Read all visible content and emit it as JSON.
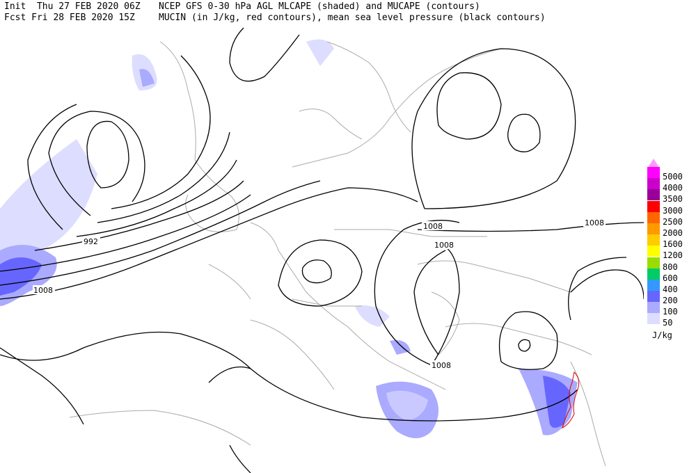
{
  "header": {
    "line1_left": "Init  Thu 27 FEB 2020 06Z",
    "line2_left": "Fcst Fri 28 FEB 2020 15Z",
    "line1_right": "NCEP GFS 0-30 hPa AGL MLCAPE (shaded) and MUCAPE (contours)",
    "line2_right": "MUCIN (in J/kg, red contours), mean sea level pressure (black contours)"
  },
  "map": {
    "isobar_labels": [
      "992",
      "1008",
      "1008",
      "1008",
      "1008",
      "1008"
    ]
  },
  "legend": {
    "unit": "J/kg",
    "items": [
      {
        "label": "5000",
        "color": "#ff00ff"
      },
      {
        "label": "4000",
        "color": "#cc00cc"
      },
      {
        "label": "3500",
        "color": "#990099"
      },
      {
        "label": "3000",
        "color": "#ff0000"
      },
      {
        "label": "2500",
        "color": "#ff6600"
      },
      {
        "label": "2000",
        "color": "#ff9900"
      },
      {
        "label": "1600",
        "color": "#ffcc00"
      },
      {
        "label": "1200",
        "color": "#ffff00"
      },
      {
        "label": "800",
        "color": "#99dd00"
      },
      {
        "label": "600",
        "color": "#00cc66"
      },
      {
        "label": "400",
        "color": "#3399ff"
      },
      {
        "label": "200",
        "color": "#6666ff"
      },
      {
        "label": "100",
        "color": "#aaaaff"
      },
      {
        "label": "50",
        "color": "#ddddff"
      }
    ]
  }
}
